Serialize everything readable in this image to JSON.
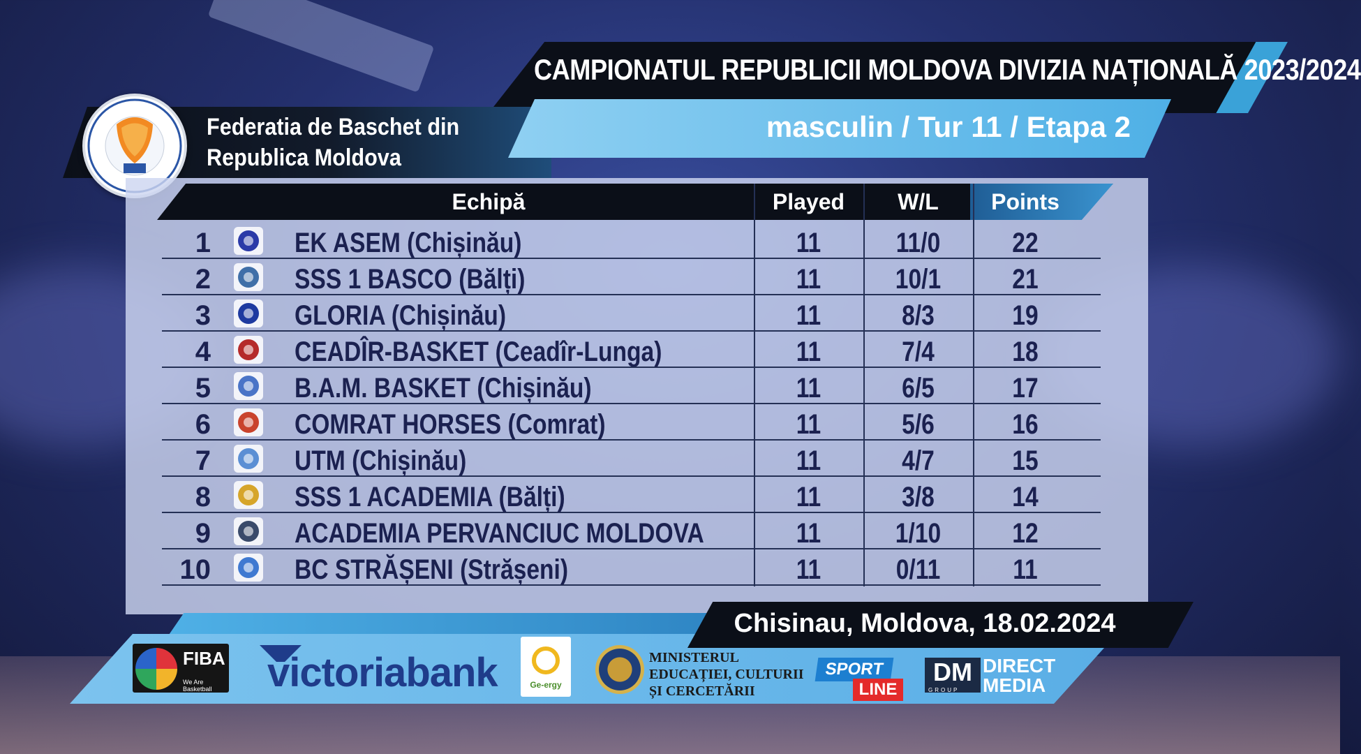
{
  "header": {
    "title": "CAMPIONATUL REPUBLICII MOLDOVA DIVIZIA NAȚIONALĂ 2023/2024",
    "federation_line1": "Federatia de Baschet din",
    "federation_line2": "Republica Moldova",
    "logo_text": "Federatia de baschet din Republica Moldova",
    "subtitle": "masculin / Tur 11 / Etapa 2"
  },
  "table": {
    "columns": [
      "Echipă",
      "Played",
      "W/L",
      "Points"
    ],
    "rows": [
      {
        "rank": "1",
        "team": "EK ASEM (Chișinău)",
        "played": "11",
        "wl": "11/0",
        "points": "22",
        "logo": "asem-logo",
        "logo_color": "#2b3aa8"
      },
      {
        "rank": "2",
        "team": "SSS 1 BASCO (Bălți)",
        "played": "11",
        "wl": "10/1",
        "points": "21",
        "logo": "basco-logo",
        "logo_color": "#3f6fa8"
      },
      {
        "rank": "3",
        "team": "GLORIA (Chișinău)",
        "played": "11",
        "wl": "8/3",
        "points": "19",
        "logo": "gloria-logo",
        "logo_color": "#1e3aa0"
      },
      {
        "rank": "4",
        "team": "CEADÎR-BASKET (Ceadîr-Lunga)",
        "played": "11",
        "wl": "7/4",
        "points": "18",
        "logo": "ceadir-logo",
        "logo_color": "#b52a2a"
      },
      {
        "rank": "5",
        "team": "B.A.M. BASKET (Chișinău)",
        "played": "11",
        "wl": "6/5",
        "points": "17",
        "logo": "bam-logo",
        "logo_color": "#4a74c7"
      },
      {
        "rank": "6",
        "team": "COMRAT HORSES (Comrat)",
        "played": "11",
        "wl": "5/6",
        "points": "16",
        "logo": "comrat-logo",
        "logo_color": "#c9432c"
      },
      {
        "rank": "7",
        "team": "UTM (Chișinău)",
        "played": "11",
        "wl": "4/7",
        "points": "15",
        "logo": "utm-logo",
        "logo_color": "#5b8fd4"
      },
      {
        "rank": "8",
        "team": "SSS 1 ACADEMIA (Bălți)",
        "played": "11",
        "wl": "3/8",
        "points": "14",
        "logo": "academia-logo",
        "logo_color": "#d6a52a"
      },
      {
        "rank": "9",
        "team": "ACADEMIA PERVANCIUC MOLDOVA",
        "played": "11",
        "wl": "1/10",
        "points": "12",
        "logo": "pervanciuc-logo",
        "logo_color": "#3a4a6a"
      },
      {
        "rank": "10",
        "team": "BC STRĂȘENI (Strășeni)",
        "played": "11",
        "wl": "0/11",
        "points": "11",
        "logo": "straseni-logo",
        "logo_color": "#3f79d1"
      }
    ]
  },
  "footer": {
    "date_location": "Chisinau, Moldova, 18.02.2024"
  },
  "sponsors": {
    "fiba": "FIBA",
    "fiba_tagline": "We Are Basketball",
    "victoriabank": "victoriabank",
    "energy": "Ge-ergy",
    "ministry": "MINISTERUL\nEDUCAȚIEI, CULTURII\nȘI CERCETĂRII",
    "sport_top": "SPORT",
    "sport_bottom": "LINE",
    "dm": "DM",
    "dm_group": "GROUP",
    "direct_media": "DIRECT\nMEDIA"
  },
  "colors": {
    "title_bg": "#0b0f18",
    "accent_blue": "#4fb0e6",
    "panel": "#cdd6f0",
    "text_dark": "#1b2150"
  }
}
